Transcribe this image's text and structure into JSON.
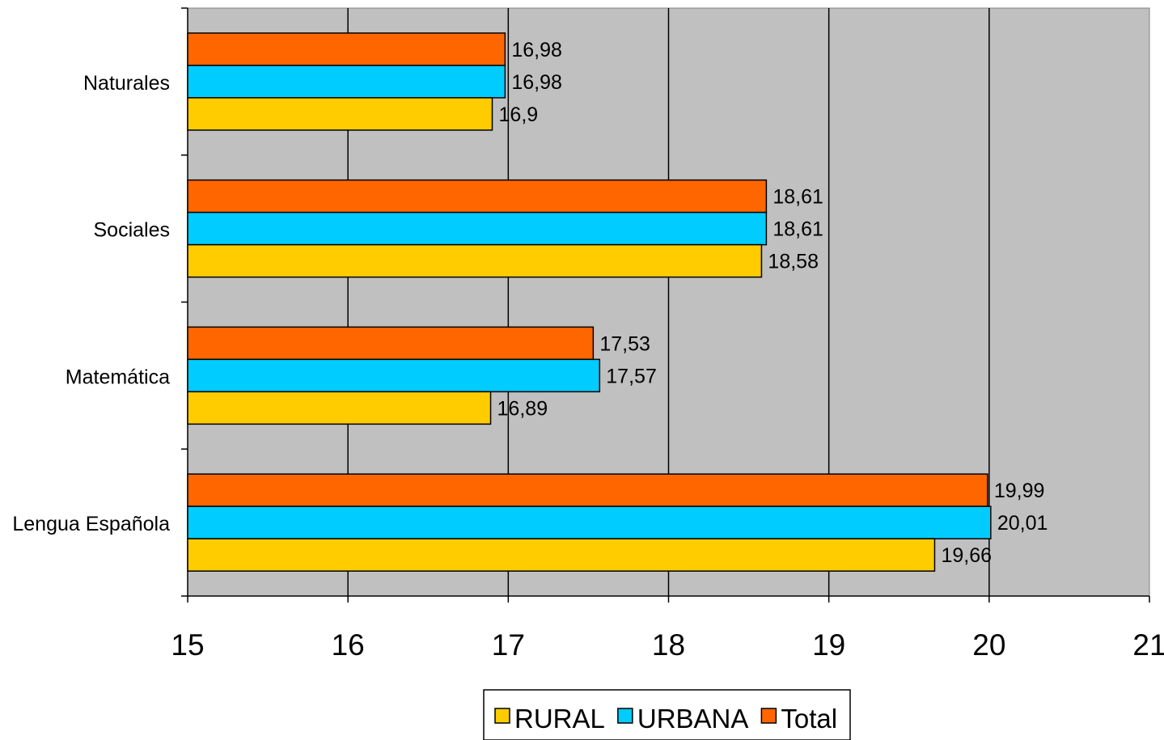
{
  "chart_data": {
    "type": "bar",
    "orientation": "horizontal",
    "title": "",
    "xlabel": "",
    "ylabel": "",
    "xlim": [
      15,
      21
    ],
    "x_ticks": [
      "15",
      "16",
      "17",
      "18",
      "19",
      "20",
      "21"
    ],
    "grid": true,
    "legend_position": "bottom",
    "categories": [
      "Naturales",
      "Sociales",
      "Matemática",
      "Lengua Española"
    ],
    "series": [
      {
        "name": "RURAL",
        "color": "#FFCC00",
        "values": [
          16.9,
          18.58,
          16.89,
          19.66
        ],
        "labels": [
          "16,9",
          "18,58",
          "16,89",
          "19,66"
        ]
      },
      {
        "name": "URBANA",
        "color": "#00CCFF",
        "values": [
          16.98,
          18.61,
          17.57,
          20.01
        ],
        "labels": [
          "16,98",
          "18,61",
          "17,57",
          "20,01"
        ]
      },
      {
        "name": "Total",
        "color": "#FF6600",
        "values": [
          16.98,
          18.61,
          17.53,
          19.99
        ],
        "labels": [
          "16,98",
          "18,61",
          "17,53",
          "19,99"
        ]
      }
    ],
    "plot_background": "#C0C0C0"
  }
}
